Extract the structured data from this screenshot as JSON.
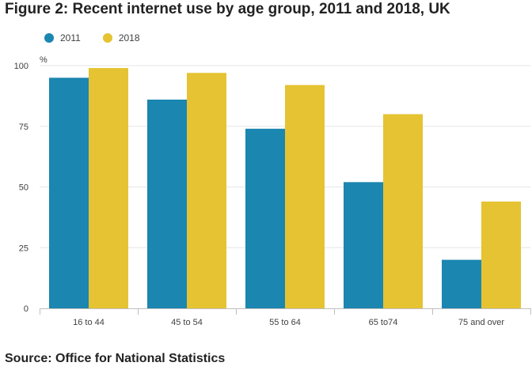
{
  "title": "Figure 2: Recent internet use by age group, 2011 and 2018, UK",
  "source": "Source: Office for National Statistics",
  "colors": {
    "series_2011": "#1b86b0",
    "series_2018": "#e5c332",
    "grid": "#e6e6e6",
    "axis": "#bfbfbf",
    "text": "#414042"
  },
  "chart_data": {
    "type": "bar",
    "title": "Figure 2: Recent internet use by age group, 2011 and 2018, UK",
    "xlabel": "",
    "ylabel": "%",
    "ylim": [
      0,
      100
    ],
    "yticks": [
      0,
      25,
      50,
      75,
      100
    ],
    "grid": true,
    "legend_position": "top-left",
    "categories": [
      "16 to 44",
      "45 to 54",
      "55 to 64",
      "65 to74",
      "75 and over"
    ],
    "series": [
      {
        "name": "2011",
        "values": [
          95,
          86,
          74,
          52,
          20
        ]
      },
      {
        "name": "2018",
        "values": [
          99,
          97,
          92,
          80,
          44
        ]
      }
    ]
  }
}
